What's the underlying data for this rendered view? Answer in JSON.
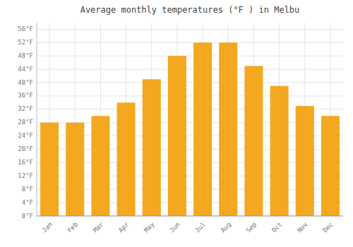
{
  "chart_data": {
    "type": "bar",
    "title": "Average monthly temperatures (°F ) in Melbu",
    "categories": [
      "Jan",
      "Feb",
      "Mar",
      "Apr",
      "May",
      "Jun",
      "Jul",
      "Aug",
      "Sep",
      "Oct",
      "Nov",
      "Dec"
    ],
    "values": [
      28,
      28,
      30,
      34,
      41,
      48,
      52,
      52,
      45,
      39,
      33,
      30
    ],
    "color": "#f4a820",
    "ylim": [
      0,
      58
    ],
    "yticks": [
      {
        "value": 0,
        "label": "0°F"
      },
      {
        "value": 4,
        "label": "4°F"
      },
      {
        "value": 8,
        "label": "8°F"
      },
      {
        "value": 12,
        "label": "12°F"
      },
      {
        "value": 16,
        "label": "16°F"
      },
      {
        "value": 20,
        "label": "20°F"
      },
      {
        "value": 24,
        "label": "24°F"
      },
      {
        "value": 28,
        "label": "28°F"
      },
      {
        "value": 32,
        "label": "32°F"
      },
      {
        "value": 36,
        "label": "36°F"
      },
      {
        "value": 40,
        "label": "40°F"
      },
      {
        "value": 44,
        "label": "44°F"
      },
      {
        "value": 48,
        "label": "48°F"
      },
      {
        "value": 52,
        "label": "52°F"
      },
      {
        "value": 56,
        "label": "56°F"
      }
    ],
    "grid": true
  }
}
